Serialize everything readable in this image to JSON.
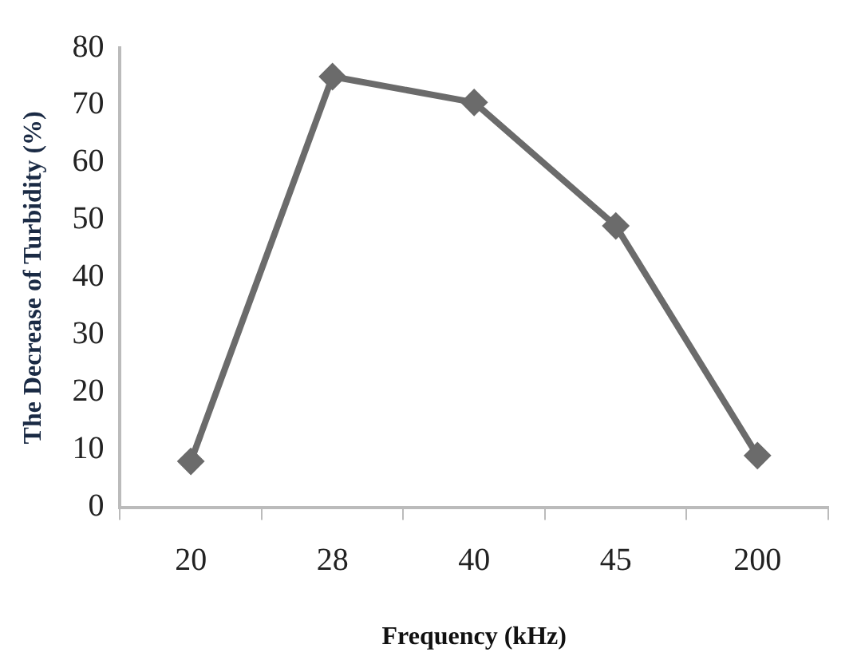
{
  "chart_data": {
    "type": "line",
    "xlabel": "Frequency (kHz)",
    "ylabel": "The Decrease of Turbidity (%)",
    "categories": [
      "20",
      "28",
      "40",
      "45",
      "200"
    ],
    "series": [
      {
        "color": "#6b6b6b",
        "values": [
          8,
          75,
          70.5,
          49,
          9
        ]
      }
    ],
    "ylim": [
      0,
      80
    ],
    "yticks": [
      0,
      10,
      20,
      30,
      40,
      50,
      60,
      70,
      80
    ],
    "grid": false,
    "legend": false,
    "marker": "diamond",
    "line_style": "solid"
  }
}
